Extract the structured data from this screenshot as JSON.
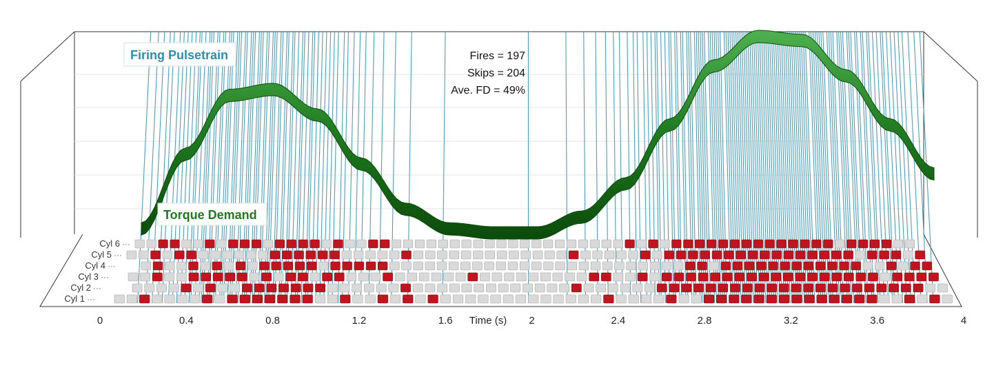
{
  "chart_data": {
    "type": "3d-pulsetrain",
    "xlabel": "Time (s)",
    "xlim": [
      0,
      4
    ],
    "xticks": [
      "0",
      "0.4",
      "0.8",
      "1.2",
      "1.6",
      "2",
      "2.4",
      "2.8",
      "3.2",
      "3.6",
      "4"
    ],
    "series": [
      {
        "name": "Firing Pulsetrain",
        "color": "#2c8fb0"
      },
      {
        "name": "Torque Demand",
        "color": "#1f7a1f"
      }
    ],
    "stats": {
      "fires": "Fires = 197",
      "skips": "Skips = 204",
      "ave_fd": "Ave. FD = 49%"
    },
    "cylinders": [
      "Cyl 6",
      "Cyl 5",
      "Cyl 4",
      "Cyl 3",
      "Cyl 2",
      "Cyl 1"
    ],
    "torque_demand": {
      "t": [
        0.2,
        0.4,
        0.6,
        0.8,
        1.0,
        1.2,
        1.4,
        1.6,
        1.8,
        2.0,
        2.2,
        2.4,
        2.6,
        2.8,
        3.0,
        3.2,
        3.4,
        3.6,
        3.8
      ],
      "fraction": [
        0.02,
        0.4,
        0.7,
        0.73,
        0.6,
        0.35,
        0.12,
        0.02,
        0.0,
        0.0,
        0.08,
        0.25,
        0.55,
        0.85,
        1.0,
        0.98,
        0.8,
        0.55,
        0.3
      ]
    },
    "fire_colors": {
      "fire": "#c0151f",
      "skip": "#d9d9d9"
    }
  }
}
